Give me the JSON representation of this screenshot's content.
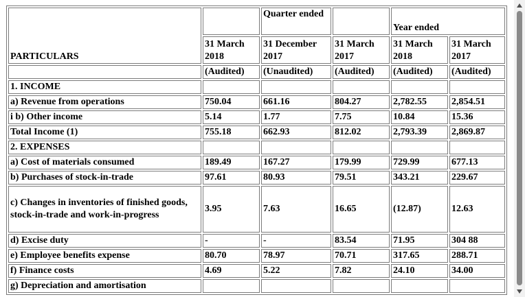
{
  "header": {
    "particulars": "PARTICULARS",
    "quarter_ended": "Quarter ended",
    "year_ended": "Year ended",
    "columns": [
      {
        "date": "31 March 2018",
        "status": "(Audited)"
      },
      {
        "date": "31 December 2017",
        "status": "(Unaudited)"
      },
      {
        "date": "31 March 2017",
        "status": "(Audited)"
      },
      {
        "date": "31 March 2018",
        "status": "(Audited)"
      },
      {
        "date": "31 March 2017",
        "status": "(Audited)"
      }
    ]
  },
  "rows": [
    {
      "label": "1. INCOME",
      "values": [
        "",
        "",
        "",
        "",
        ""
      ]
    },
    {
      "label": "a) Revenue from operations",
      "values": [
        "750.04",
        "661.16",
        "804.27",
        "2,782.55",
        "2,854.51"
      ]
    },
    {
      "label": "i b) Other income",
      "values": [
        "5.14",
        "1.77",
        "7.75",
        "10.84",
        "15.36"
      ]
    },
    {
      "label": "Total Income (1)",
      "values": [
        "755.18",
        "662.93",
        "812.02",
        "2,793.39",
        "2,869.87"
      ]
    },
    {
      "label": "2. EXPENSES",
      "values": [
        "",
        "",
        "",
        "",
        ""
      ]
    },
    {
      "label": "a) Cost of materials consumed",
      "values": [
        "189.49",
        "167.27",
        "179.99",
        "729.99",
        "677.13"
      ]
    },
    {
      "label": "b) Purchases of stock-in-trade",
      "values": [
        "97.61",
        "80.93",
        "79.51",
        "343.21",
        "229.67"
      ]
    },
    {
      "label": "c) Changes in inventories of finished goods, stock-in-trade and work-in-progress",
      "values": [
        "3.95",
        "7.63",
        "16.65",
        "(12.87)",
        "12.63"
      ]
    },
    {
      "label": "d) Excise duty",
      "values": [
        "-",
        "-",
        "83.54",
        "71.95",
        "304 88"
      ]
    },
    {
      "label": "e) Employee benefits expense",
      "values": [
        "80.70",
        "78.97",
        "70.71",
        "317.65",
        "288.71"
      ]
    },
    {
      "label": "f) Finance costs",
      "values": [
        "4.69",
        "5.22",
        "7.82",
        "24.10",
        "34.00"
      ]
    },
    {
      "label": "g) Depreciation and amortisation",
      "values": [
        "",
        "",
        "",
        "",
        ""
      ]
    }
  ],
  "scrollbar": {
    "up_icon": "arrow-up-icon",
    "down_icon": "arrow-down-icon"
  }
}
